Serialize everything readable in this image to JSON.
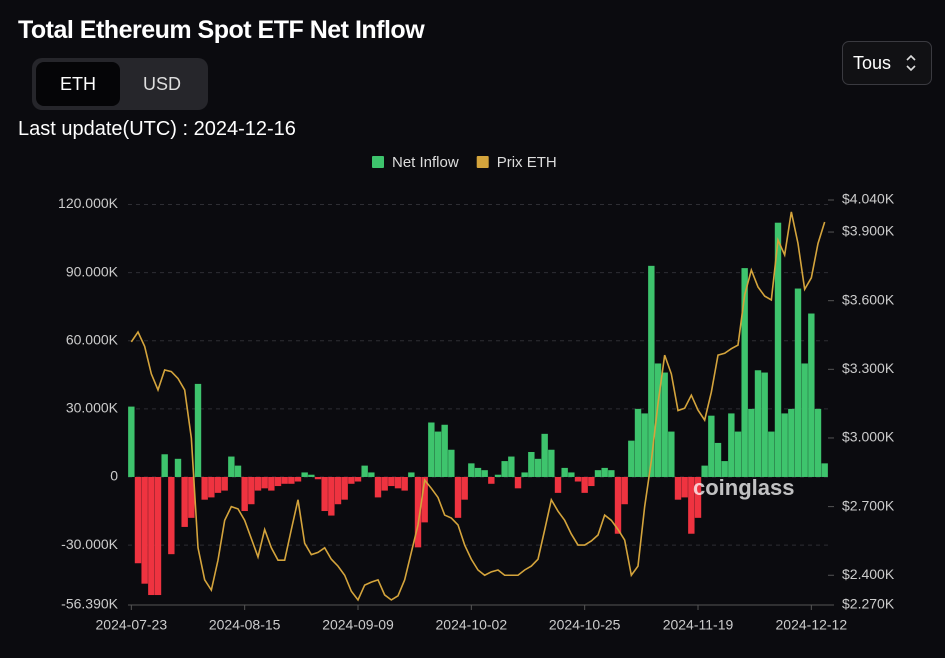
{
  "controls": {
    "units": [
      "ETH",
      "USD"
    ],
    "range": "Tous"
  },
  "last_update": "Last update(UTC) : 2024-12-16",
  "watermark": "coinglass",
  "chart_data": {
    "type": "bar",
    "title": "Total Ethereum Spot ETF Net Inflow",
    "categories": [
      "2024-07-23",
      null,
      null,
      null,
      null,
      null,
      null,
      null,
      null,
      null,
      null,
      null,
      null,
      null,
      null,
      null,
      null,
      "2024-08-15",
      null,
      null,
      null,
      null,
      null,
      null,
      null,
      null,
      null,
      null,
      null,
      null,
      null,
      null,
      null,
      null,
      "2024-09-09",
      null,
      null,
      null,
      null,
      null,
      null,
      null,
      null,
      null,
      null,
      null,
      null,
      null,
      null,
      null,
      null,
      "2024-10-02",
      null,
      null,
      null,
      null,
      null,
      null,
      null,
      null,
      null,
      null,
      null,
      null,
      null,
      null,
      null,
      null,
      "2024-10-25",
      null,
      null,
      null,
      null,
      null,
      null,
      null,
      null,
      null,
      null,
      null,
      null,
      null,
      null,
      null,
      null,
      "2024-11-19",
      null,
      null,
      null,
      null,
      null,
      null,
      null,
      null,
      null,
      null,
      null,
      null,
      null,
      null,
      null,
      null,
      "2024-12-12",
      null,
      null
    ],
    "series": [
      {
        "name": "Net Inflow",
        "color": "#3ec46d",
        "negative_color": "#ef3340",
        "values": [
          31000,
          -38000,
          -47000,
          -52000,
          -52000,
          10000,
          -34000,
          8000,
          -22000,
          -18000,
          41000,
          -10000,
          -9000,
          -7000,
          -6000,
          9000,
          5000,
          -15000,
          -12000,
          -6000,
          -5000,
          -6000,
          -4000,
          -3000,
          -3000,
          -2000,
          2000,
          1000,
          -1000,
          -15000,
          -17000,
          -12000,
          -10000,
          -3000,
          -2000,
          5000,
          2000,
          -9000,
          -6000,
          -4000,
          -5000,
          -6000,
          2000,
          -31000,
          -20000,
          24000,
          20000,
          23000,
          12000,
          -18000,
          -10000,
          6000,
          4000,
          3000,
          -3000,
          1000,
          7000,
          9000,
          -5000,
          2000,
          11000,
          8000,
          19000,
          12000,
          -7000,
          4000,
          2000,
          -2000,
          -7000,
          -4000,
          3000,
          4000,
          3000,
          -25000,
          -12000,
          16000,
          30000,
          28000,
          93000,
          50000,
          46000,
          20000,
          -10000,
          -9000,
          -25000,
          -18000,
          5000,
          27000,
          15000,
          7000,
          28000,
          20000,
          92000,
          30000,
          47000,
          46000,
          20000,
          112000,
          28000,
          30000,
          83000,
          50000,
          72000,
          30000,
          6000
        ]
      },
      {
        "name": "Prix ETH",
        "type": "line",
        "axis": "y2",
        "color": "#d4a43c",
        "values": [
          3420,
          3463,
          3400,
          3280,
          3210,
          3297,
          3290,
          3260,
          3210,
          3000,
          2520,
          2380,
          2335,
          2466,
          2640,
          2700,
          2690,
          2640,
          2560,
          2480,
          2600,
          2520,
          2466,
          2466,
          2600,
          2730,
          2540,
          2490,
          2500,
          2520,
          2470,
          2440,
          2400,
          2330,
          2292,
          2357,
          2370,
          2380,
          2314,
          2292,
          2310,
          2380,
          2500,
          2620,
          2816,
          2780,
          2740,
          2663,
          2650,
          2620,
          2532,
          2470,
          2423,
          2400,
          2415,
          2423,
          2400,
          2400,
          2400,
          2423,
          2440,
          2470,
          2598,
          2730,
          2680,
          2640,
          2580,
          2532,
          2532,
          2550,
          2576,
          2663,
          2640,
          2600,
          2554,
          2400,
          2440,
          2700,
          2900,
          3150,
          3362,
          3280,
          3120,
          3130,
          3187,
          3122,
          3078,
          3200,
          3362,
          3370,
          3390,
          3406,
          3625,
          3734,
          3660,
          3620,
          3603,
          3865,
          3800,
          3988,
          3850,
          3650,
          3700,
          3850,
          3944
        ]
      }
    ],
    "ylim": [
      -56390,
      122000
    ],
    "yticks": [
      {
        "value": 120000,
        "label": "120.000K"
      },
      {
        "value": 90000,
        "label": "90.000K"
      },
      {
        "value": 60000,
        "label": "60.000K"
      },
      {
        "value": 30000,
        "label": "30.000K"
      },
      0,
      {
        "value": -30000,
        "label": "-30.000K"
      },
      {
        "value": -56390,
        "label": "-56.390K"
      }
    ],
    "y2lim": [
      2270,
      4040
    ],
    "y2ticks": [
      {
        "value": 4040,
        "label": "$4.040K"
      },
      {
        "value": 3900,
        "label": "$3.900K"
      },
      {
        "value": 3600,
        "label": "$3.600K"
      },
      {
        "value": 3300,
        "label": "$3.300K"
      },
      {
        "value": 3000,
        "label": "$3.000K"
      },
      {
        "value": 2700,
        "label": "$2.700K"
      },
      {
        "value": 2400,
        "label": "$2.400K"
      },
      {
        "value": 2270,
        "label": "$2.270K"
      }
    ],
    "grid": true,
    "legend": "top"
  }
}
